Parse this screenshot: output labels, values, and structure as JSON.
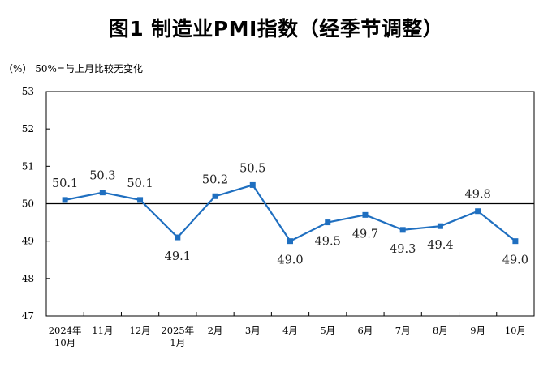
{
  "chart_data": {
    "type": "line",
    "title": "图1  制造业PMI指数（经季节调整）",
    "subtitle": "（%）  50%=与上月比较无变化",
    "x": [
      "2024年\n10月",
      "11月",
      "12月",
      "2025年\n1月",
      "2月",
      "3月",
      "4月",
      "5月",
      "6月",
      "7月",
      "8月",
      "9月",
      "10月"
    ],
    "series": [
      {
        "values": [
          50.1,
          50.3,
          50.1,
          49.1,
          50.2,
          50.5,
          49.0,
          49.5,
          49.7,
          49.3,
          49.4,
          49.8,
          49.0
        ],
        "labels": [
          "50.1",
          "50.3",
          "50.1",
          "49.1",
          "50.2",
          "50.5",
          "49.0",
          "49.5",
          "49.7",
          "49.3",
          "49.4",
          "49.8",
          "49.0"
        ],
        "label_position": [
          "above",
          "above",
          "above",
          "below",
          "above",
          "above",
          "below",
          "below",
          "below",
          "below",
          "below",
          "above",
          "below"
        ]
      }
    ],
    "ylim": [
      47,
      53
    ],
    "yticks": [
      47,
      48,
      49,
      50,
      51,
      52,
      53
    ],
    "reference_line": 50,
    "grid": false,
    "colors": {
      "line": "#1f6fc0",
      "marker": "#1f6fc0",
      "axis": "#000000",
      "reference": "#000000"
    }
  }
}
